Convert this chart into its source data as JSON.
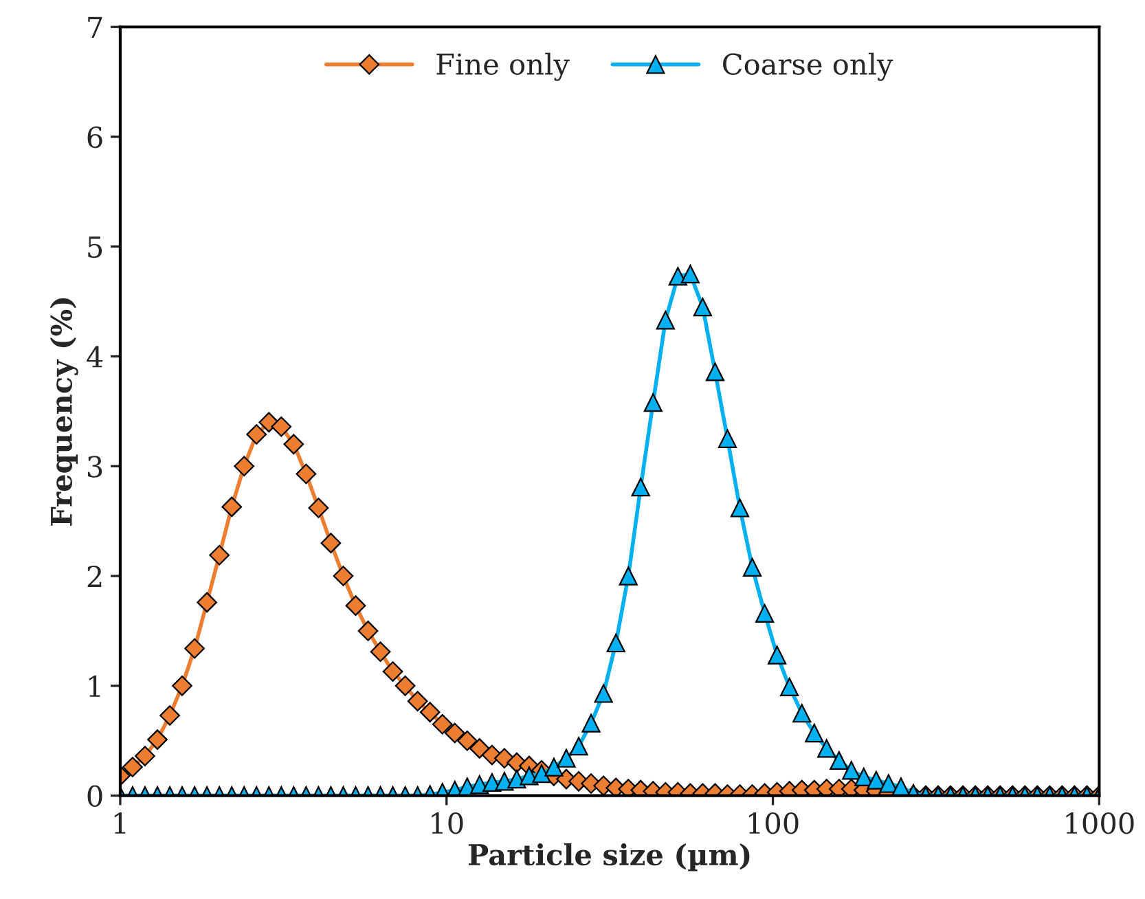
{
  "chart_data": {
    "type": "line",
    "xlabel": "Particle size (µm)",
    "ylabel": "Frequency (%)",
    "log": "x",
    "xlim": [
      1,
      1000
    ],
    "xticks": [
      1,
      10,
      100,
      1000
    ],
    "ylim": [
      0,
      7
    ],
    "yticks": [
      0,
      1,
      2,
      3,
      4,
      5,
      6,
      7
    ],
    "grid": false,
    "legend": "top",
    "line_style": "solid",
    "x": [
      1,
      1.091,
      1.191,
      1.3,
      1.419,
      1.548,
      1.69,
      1.844,
      2.013,
      2.197,
      2.397,
      2.616,
      2.855,
      3.116,
      3.401,
      3.712,
      4.051,
      4.421,
      4.825,
      5.266,
      5.747,
      6.272,
      6.845,
      7.47,
      8.153,
      8.898,
      9.713,
      10.6,
      11.57,
      12.62,
      13.78,
      15.04,
      16.41,
      17.91,
      19.55,
      21.33,
      23.28,
      25.41,
      27.73,
      30.27,
      33.04,
      36.06,
      39.35,
      42.95,
      46.88,
      51.16,
      55.84,
      60.94,
      66.51,
      72.59,
      79.22,
      86.46,
      94.37,
      103,
      112.4,
      122.7,
      133.9,
      146.1,
      159.5,
      174,
      189.9,
      207.3,
      226.2,
      246.9,
      269.5,
      294.1,
      321,
      350.3,
      382.3,
      417.3,
      455.4,
      497,
      542.5,
      592.1,
      646.2,
      705.2,
      769.7,
      840,
      916.8,
      1000
    ],
    "series": [
      {
        "name": "Fine only",
        "color": "#ed7d31",
        "marker": "diamond",
        "values": [
          0.18,
          0.26,
          0.36,
          0.51,
          0.73,
          1.0,
          1.34,
          1.76,
          2.19,
          2.63,
          3.0,
          3.29,
          3.4,
          3.36,
          3.2,
          2.93,
          2.62,
          2.3,
          2.0,
          1.73,
          1.5,
          1.31,
          1.13,
          1.0,
          0.86,
          0.76,
          0.65,
          0.57,
          0.5,
          0.43,
          0.37,
          0.34,
          0.3,
          0.27,
          0.23,
          0.18,
          0.15,
          0.13,
          0.11,
          0.09,
          0.07,
          0.06,
          0.05,
          0.04,
          0.03,
          0.03,
          0.02,
          0.02,
          0.02,
          0.01,
          0.01,
          0.01,
          0.02,
          0.03,
          0.04,
          0.05,
          0.05,
          0.06,
          0.06,
          0.06,
          0.05,
          0.04,
          0.02,
          0,
          0,
          0,
          0,
          0,
          0,
          0,
          0,
          0,
          0,
          0,
          0,
          0,
          0,
          0,
          0,
          0
        ]
      },
      {
        "name": "Coarse only",
        "color": "#00b0f0",
        "marker": "triangle",
        "values": [
          0,
          0,
          0,
          0,
          0,
          0,
          0,
          0,
          0,
          0,
          0,
          0,
          0,
          0,
          0,
          0,
          0,
          0,
          0,
          0,
          0,
          0,
          0,
          0,
          0,
          0.01,
          0.03,
          0.05,
          0.08,
          0.1,
          0.12,
          0.13,
          0.15,
          0.18,
          0.2,
          0.26,
          0.34,
          0.45,
          0.66,
          0.93,
          1.39,
          2.0,
          2.81,
          3.58,
          4.33,
          4.73,
          4.75,
          4.45,
          3.86,
          3.25,
          2.62,
          2.08,
          1.66,
          1.28,
          0.99,
          0.75,
          0.57,
          0.43,
          0.32,
          0.23,
          0.17,
          0.14,
          0.11,
          0.08,
          0.02,
          0,
          0,
          0,
          0,
          0,
          0,
          0,
          0,
          0,
          0,
          0,
          0,
          0,
          0,
          0
        ]
      }
    ]
  }
}
